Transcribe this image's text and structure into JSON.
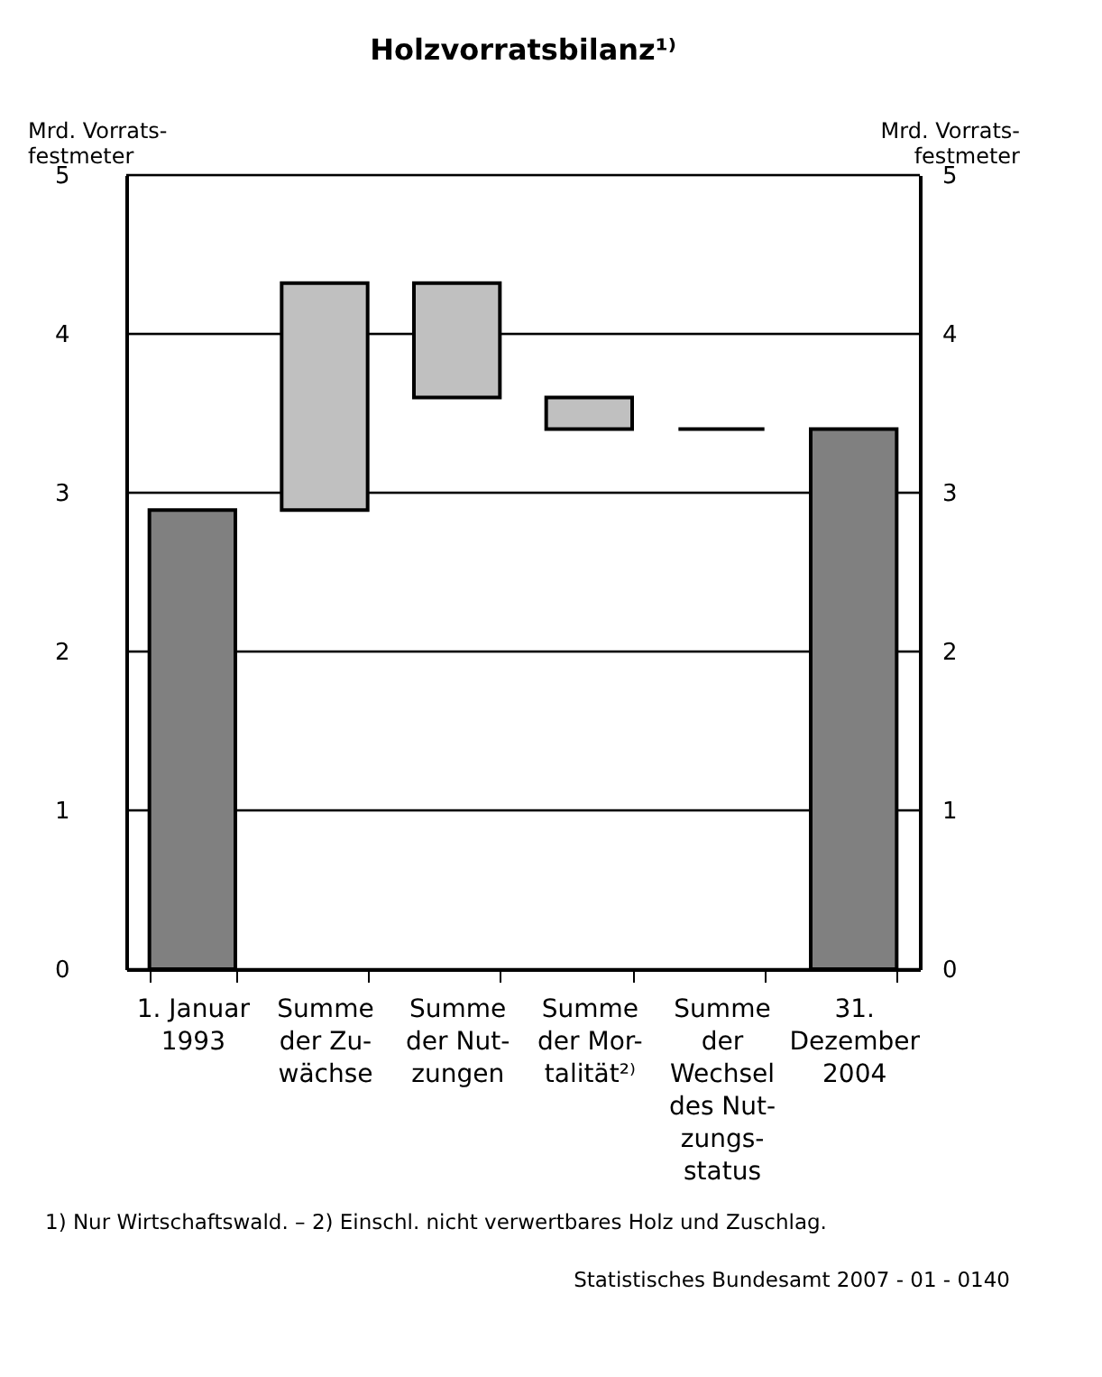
{
  "chart_data": {
    "type": "bar",
    "title": "Holzvorratsbilanz¹⁾",
    "categories": [
      "1. Januar\n1993",
      "Summe\nder Zu-\nwächse",
      "Summe\nder Nut-\nzungen",
      "Summe\nder Mor-\ntalität²⁾",
      "Summe\nder\nWechsel\ndes Nut-\nzungs-\nstatus",
      "31.\nDezember\n2004"
    ],
    "base": [
      0,
      2.89,
      3.6,
      3.4,
      3.4,
      0
    ],
    "values": [
      2.89,
      1.43,
      0.72,
      0.2,
      0,
      3.4
    ],
    "colors": [
      "#808080",
      "#c0c0c0",
      "#c0c0c0",
      "#c0c0c0",
      "#000000",
      "#808080"
    ],
    "ylabel": "Mrd. Vorrats-\nfestmeter",
    "y2label": "Mrd. Vorrats-\nfestmeter",
    "ylim": [
      0,
      5
    ],
    "yticks": [
      0,
      1,
      2,
      3,
      4,
      5
    ],
    "y2lim": [
      0,
      5
    ],
    "y2ticks": [
      0,
      1,
      2,
      3,
      4,
      5
    ],
    "grid": true,
    "annotations": [
      "1) Nur Wirtschaftswald. – 2) Einschl. nicht verwertbares Holz und Zuschlag.",
      "Statistisches Bundesamt 2007 - 01 - 0140"
    ]
  }
}
